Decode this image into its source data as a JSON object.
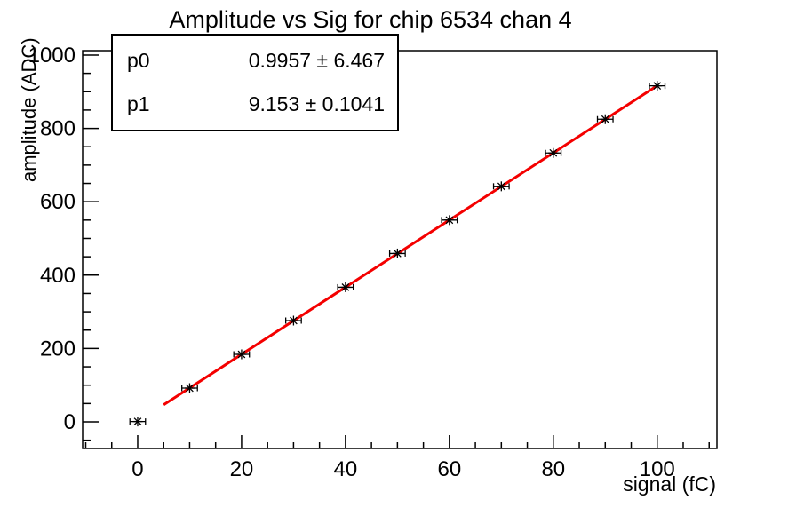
{
  "window": {
    "background": "#ffffff"
  },
  "stats_box": {
    "rows": [
      {
        "name": "p0",
        "value": "0.9957 ± 6.467"
      },
      {
        "name": "p1",
        "value": "9.153 ± 0.1041"
      }
    ]
  },
  "chart_data": {
    "type": "scatter",
    "title": "Amplitude vs Sig for chip 6534 chan 4",
    "xlabel": "signal (fC)",
    "ylabel": "amplitude (ADC)",
    "xlim": [
      -10.6,
      111.5
    ],
    "ylim": [
      -72.6,
      1012
    ],
    "x": [
      0,
      10,
      20,
      30,
      40,
      50,
      60,
      70,
      80,
      90,
      100
    ],
    "y": [
      1,
      92,
      184,
      276,
      367,
      459,
      550,
      642,
      733,
      825,
      916
    ],
    "xerr": 1.5,
    "x_major_ticks": [
      0,
      20,
      40,
      60,
      80,
      100
    ],
    "x_tick_labels": [
      "0",
      "20",
      "40",
      "60",
      "80",
      "100"
    ],
    "x_minor_step": 5,
    "y_major_ticks": [
      0,
      200,
      400,
      600,
      800,
      1000
    ],
    "y_tick_labels": [
      "0",
      "200",
      "400",
      "600",
      "800",
      "1000"
    ],
    "y_minor_step": 50,
    "fit": {
      "p0": 0.9957,
      "p0_err": 6.467,
      "p1": 9.153,
      "p1_err": 0.1041,
      "range": [
        5,
        100
      ]
    },
    "marker": "asterisk-with-x-error-bars",
    "grid": false,
    "legend_position": "stats-box-top-left",
    "colors": {
      "fit_line": "#f40000",
      "marker": "#000000",
      "axis": "#000000",
      "frame_background": "#ffffff"
    }
  }
}
